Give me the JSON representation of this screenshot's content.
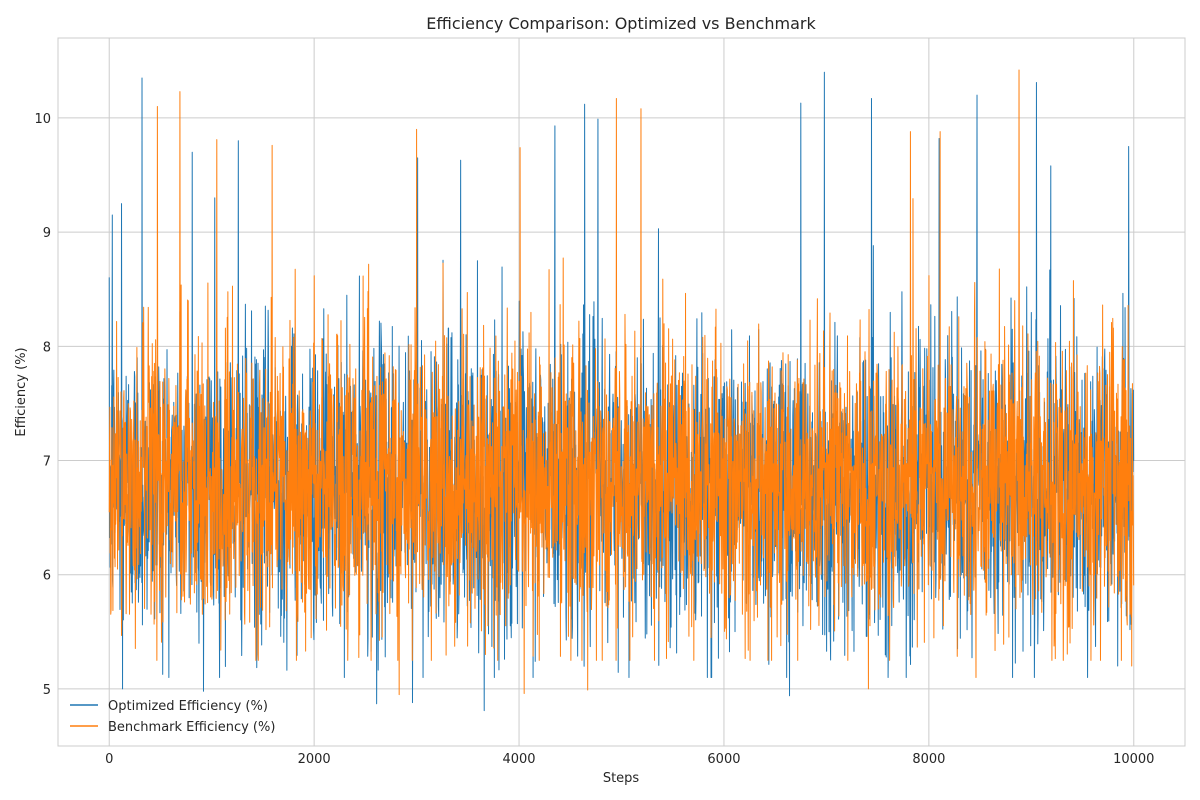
{
  "chart_data": {
    "type": "line",
    "title": "Efficiency Comparison: Optimized vs Benchmark",
    "xlabel": "Steps",
    "ylabel": "Efficiency (%)",
    "xlim": [
      -500,
      10500
    ],
    "ylim": [
      4.5,
      10.7
    ],
    "xticks": [
      0,
      2000,
      4000,
      6000,
      8000,
      10000
    ],
    "xtick_labels": [
      "0",
      "2000",
      "4000",
      "6000",
      "8000",
      "10000"
    ],
    "yticks": [
      5,
      6,
      7,
      8,
      9,
      10
    ],
    "ytick_labels": [
      "5",
      "6",
      "7",
      "8",
      "9",
      "10"
    ],
    "grid": true,
    "legend_position": "lower-left",
    "n_steps": 10000,
    "series": [
      {
        "name": "Optimized Efficiency (%)",
        "color": "#1f77b4",
        "mean": 6.8,
        "std": 0.65,
        "min": 4.8,
        "max": 10.4,
        "approx_peaks": [
          [
            30,
            9.15
          ],
          [
            120,
            9.25
          ],
          [
            320,
            10.35
          ],
          [
            810,
            9.7
          ],
          [
            1030,
            9.3
          ],
          [
            1260,
            9.8
          ],
          [
            3010,
            9.65
          ],
          [
            3430,
            9.63
          ],
          [
            4350,
            9.93
          ],
          [
            4640,
            10.12
          ],
          [
            4770,
            9.99
          ],
          [
            6750,
            10.13
          ],
          [
            6980,
            10.4
          ],
          [
            7440,
            10.17
          ],
          [
            8100,
            9.82
          ],
          [
            8470,
            10.2
          ],
          [
            9050,
            10.31
          ],
          [
            9190,
            9.58
          ],
          [
            9950,
            9.75
          ]
        ],
        "approx_troughs": [
          [
            130,
            5.0
          ],
          [
            920,
            4.98
          ],
          [
            2610,
            4.87
          ],
          [
            2960,
            4.88
          ],
          [
            3660,
            4.81
          ],
          [
            6640,
            4.94
          ]
        ]
      },
      {
        "name": "Benchmark Efficiency (%)",
        "color": "#ff7f0e",
        "mean": 6.8,
        "std": 0.65,
        "min": 4.95,
        "max": 10.42,
        "approx_peaks": [
          [
            470,
            10.1
          ],
          [
            690,
            10.23
          ],
          [
            1050,
            9.81
          ],
          [
            1590,
            9.76
          ],
          [
            3000,
            9.9
          ],
          [
            4010,
            9.74
          ],
          [
            4950,
            10.17
          ],
          [
            5190,
            10.08
          ],
          [
            7820,
            9.88
          ],
          [
            8110,
            9.88
          ],
          [
            8880,
            10.42
          ]
        ],
        "approx_troughs": [
          [
            2830,
            4.95
          ],
          [
            4050,
            4.96
          ],
          [
            4670,
            4.99
          ],
          [
            7410,
            5.0
          ],
          [
            8460,
            5.1
          ],
          [
            9980,
            5.2
          ]
        ]
      }
    ]
  }
}
